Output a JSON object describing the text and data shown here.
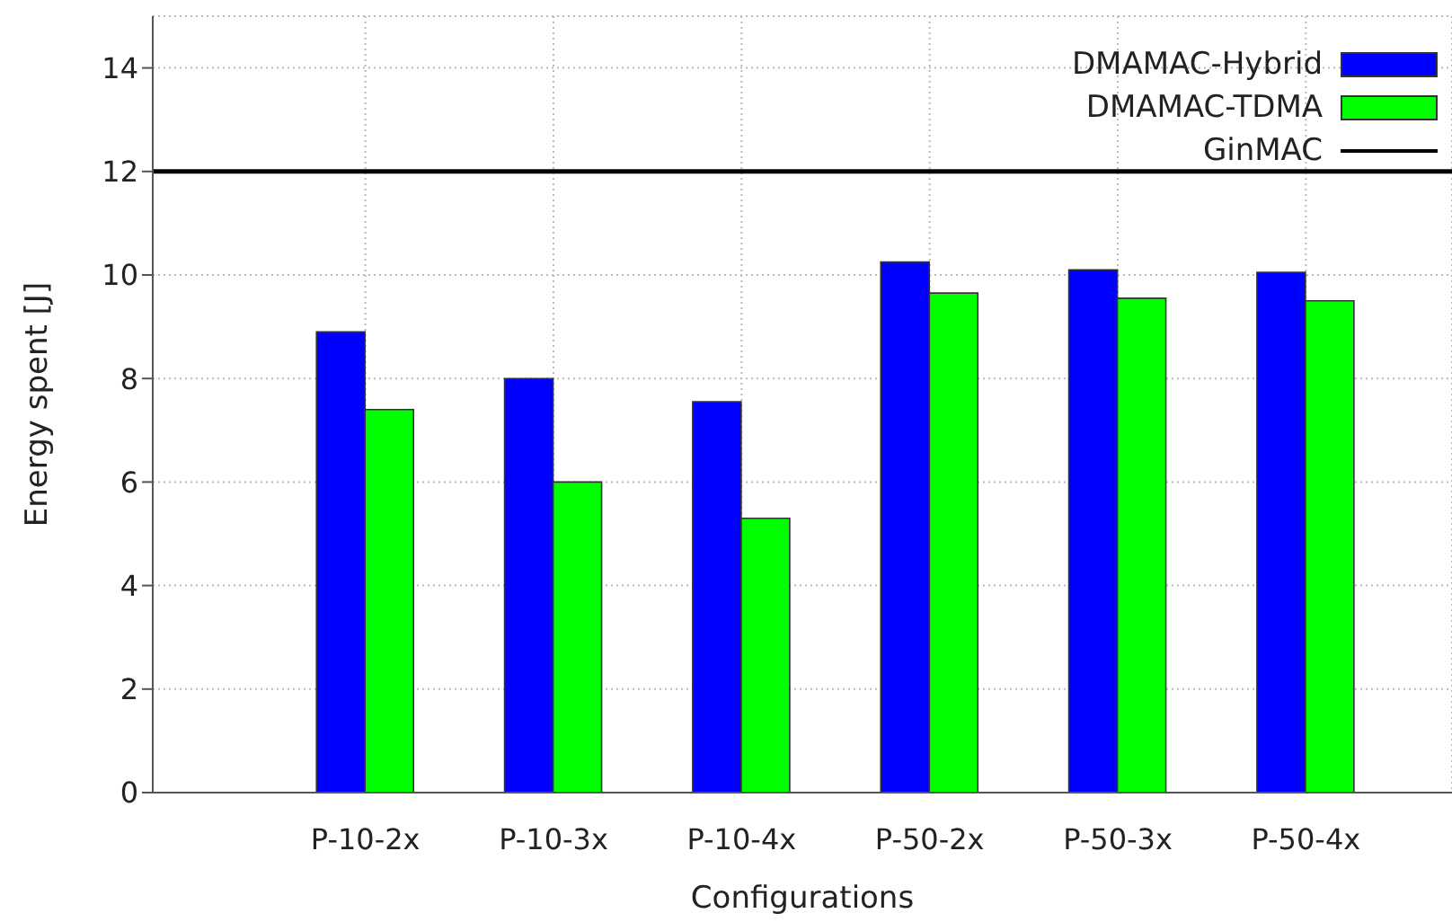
{
  "chart_data": {
    "type": "bar",
    "xlabel": "Configurations",
    "ylabel": "Energy spent [J]",
    "categories": [
      "P-10-2x",
      "P-10-3x",
      "P-10-4x",
      "P-50-2x",
      "P-50-3x",
      "P-50-4x"
    ],
    "series": [
      {
        "name": "DMAMAC-Hybrid",
        "color": "#0000ff",
        "values": [
          8.9,
          8.0,
          7.55,
          10.25,
          10.1,
          10.05
        ]
      },
      {
        "name": "DMAMAC-TDMA",
        "color": "#00ff00",
        "values": [
          7.4,
          6.0,
          5.3,
          9.65,
          9.55,
          9.5
        ]
      }
    ],
    "ref_lines": [
      {
        "axis": "y",
        "value": 12,
        "label": "GinMAC",
        "color": "#000000"
      }
    ],
    "ylim": [
      0,
      15
    ],
    "yticks": [
      0,
      2,
      4,
      6,
      8,
      10,
      12,
      14
    ],
    "grid": true,
    "legend": "top right"
  }
}
